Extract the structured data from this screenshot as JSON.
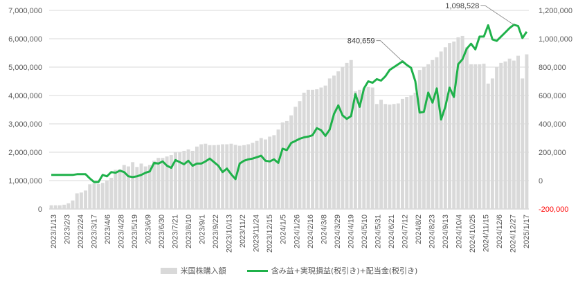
{
  "chart_data": {
    "type": "bar",
    "x_ticks": [
      "2023/1/13",
      "2023/2/3",
      "2023/2/24",
      "2023/3/17",
      "2023/4/6",
      "2023/4/28",
      "2023/5/19",
      "2023/6/9",
      "2023/6/30",
      "2023/7/21",
      "2023/8/10",
      "2023/9/1",
      "2023/9/22",
      "2023/10/13",
      "2023/11/2",
      "2023/11/24",
      "2023/12/15",
      "2024/1/5",
      "2024/1/26",
      "2024/2/16",
      "2024/3/8",
      "2024/3/29",
      "2024/4/19",
      "2024/5/10",
      "2024/5/31",
      "2024/6/21",
      "2024/7/12",
      "2024/8/2",
      "2024/8/23",
      "2024/9/13",
      "2024/10/4",
      "2024/10/25",
      "2024/11/15",
      "2024/12/6",
      "2024/12/27",
      "2025/1/17"
    ],
    "y_left": {
      "min": 0,
      "max": 7000000,
      "ticks": [
        "0",
        "1,000,000",
        "2,000,000",
        "3,000,000",
        "4,000,000",
        "5,000,000",
        "6,000,000",
        "7,000,000"
      ]
    },
    "y_right": {
      "min": -200000,
      "max": 1200000,
      "ticks": [
        "-200,000",
        "0",
        "200,000",
        "400,000",
        "600,000",
        "800,000",
        "1,000,000",
        "1,200,000"
      ]
    },
    "grid": true,
    "legend_position": "bottom",
    "series": [
      {
        "name": "米国株購入額",
        "type": "bar",
        "axis": "left",
        "color": "#d9d9d9",
        "values": [
          130000,
          130000,
          130000,
          150000,
          200000,
          300000,
          550000,
          580000,
          650000,
          870000,
          900000,
          880000,
          920000,
          1000000,
          1100000,
          1380000,
          1400000,
          1550000,
          1500000,
          1650000,
          1480000,
          1600000,
          1500000,
          1550000,
          1700000,
          1800000,
          1800000,
          1850000,
          1900000,
          2000000,
          2000000,
          2050000,
          2100000,
          2050000,
          2200000,
          2280000,
          2300000,
          2250000,
          2250000,
          2260000,
          2280000,
          2280000,
          2300000,
          2260000,
          2230000,
          2250000,
          2280000,
          2330000,
          2400000,
          2500000,
          2450000,
          2550000,
          2600000,
          2800000,
          3050000,
          3100000,
          3300000,
          3600000,
          3800000,
          4100000,
          4200000,
          4200000,
          4220000,
          4280000,
          4350000,
          4600000,
          4700000,
          4850000,
          5000000,
          5150000,
          5250000,
          4150000,
          4200000,
          4250000,
          4300000,
          4280000,
          3700000,
          3850000,
          3700000,
          3680000,
          3700000,
          3720000,
          3880000,
          3950000,
          4000000,
          4100000,
          4900000,
          5000000,
          5100000,
          5250000,
          5350000,
          5550000,
          5700000,
          5850000,
          5900000,
          6050000,
          6100000,
          5700000,
          5100000,
          5100000,
          5100000,
          5120000,
          4420000,
          4600000,
          5000000,
          5150000,
          5200000,
          5300000,
          5230000,
          5400000,
          4600000,
          5450000
        ]
      },
      {
        "name": "含み益+実現損益(税引き)+配当金(税引き)",
        "type": "line",
        "axis": "right",
        "color": "#1fb14a",
        "values": [
          40000,
          40000,
          40000,
          40000,
          40000,
          40000,
          45000,
          45000,
          45000,
          15000,
          -10000,
          -10000,
          40000,
          30000,
          60000,
          55000,
          70000,
          60000,
          30000,
          25000,
          30000,
          40000,
          55000,
          65000,
          125000,
          120000,
          135000,
          105000,
          90000,
          145000,
          130000,
          115000,
          140000,
          105000,
          120000,
          120000,
          135000,
          155000,
          130000,
          105000,
          60000,
          85000,
          45000,
          10000,
          120000,
          140000,
          150000,
          155000,
          165000,
          175000,
          140000,
          135000,
          150000,
          125000,
          225000,
          215000,
          265000,
          280000,
          295000,
          305000,
          310000,
          320000,
          370000,
          355000,
          315000,
          360000,
          470000,
          530000,
          460000,
          435000,
          455000,
          610000,
          520000,
          650000,
          700000,
          690000,
          715000,
          705000,
          735000,
          780000,
          800000,
          820000,
          840659,
          815000,
          795000,
          700000,
          480000,
          485000,
          620000,
          550000,
          650000,
          430000,
          520000,
          655000,
          590000,
          820000,
          855000,
          930000,
          965000,
          925000,
          1015000,
          1015000,
          1095000,
          995000,
          985000,
          1015000,
          1045000,
          1075000,
          1098528,
          1090000,
          1005000,
          1050000
        ]
      }
    ],
    "annotations": [
      {
        "label": "840,659",
        "series": 1,
        "point": 82
      },
      {
        "label": "1,098,528",
        "series": 1,
        "point": 108
      }
    ]
  }
}
